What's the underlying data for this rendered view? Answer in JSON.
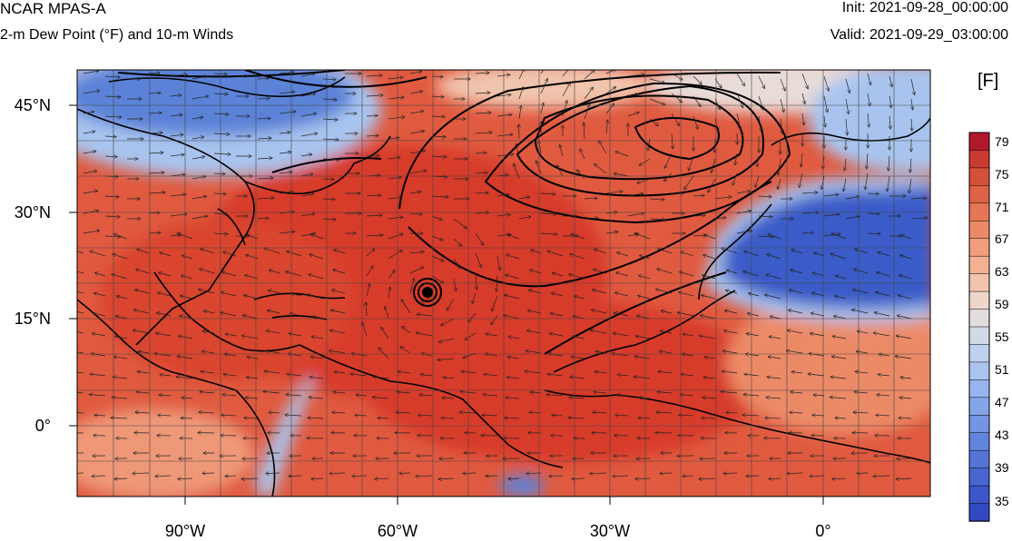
{
  "header": {
    "title": "NCAR MPAS-A",
    "subtitle": "2-m Dew Point (°F) and 10-m Winds",
    "init": "Init: 2021-09-28_00:00:00",
    "valid": "Valid: 2021-09-29_03:00:00"
  },
  "map": {
    "lat_labels": [
      "45°N",
      "30°N",
      "15°N",
      "0°"
    ],
    "lon_labels": [
      "90°W",
      "60°W",
      "30°W",
      "0°"
    ],
    "colors": {
      "warm_deep": "#d73a2c",
      "warm": "#e05a40",
      "warm_light": "#ef9878",
      "neutral": "#e8dcd8",
      "cool_light": "#a8c4ee",
      "cool": "#5b82d8",
      "cool_deep": "#3a5cc8",
      "coast": "#000000"
    }
  },
  "colorbar": {
    "unit": "[F]",
    "labels": [
      "79",
      "75",
      "71",
      "67",
      "63",
      "59",
      "55",
      "51",
      "47",
      "43",
      "39",
      "35"
    ],
    "colors": [
      "#b2182b",
      "#c93a33",
      "#d5503b",
      "#de6347",
      "#e67656",
      "#ec8a68",
      "#f09e7d",
      "#f2b193",
      "#f1c4ad",
      "#eed6cb",
      "#e2dcdc",
      "#d2d9e6",
      "#bfd0ee",
      "#abc3ef",
      "#97b4ec",
      "#84a5e8",
      "#7395e2",
      "#6384dc",
      "#5574d6",
      "#4965cf",
      "#3d56c8",
      "#3349c1"
    ]
  }
}
